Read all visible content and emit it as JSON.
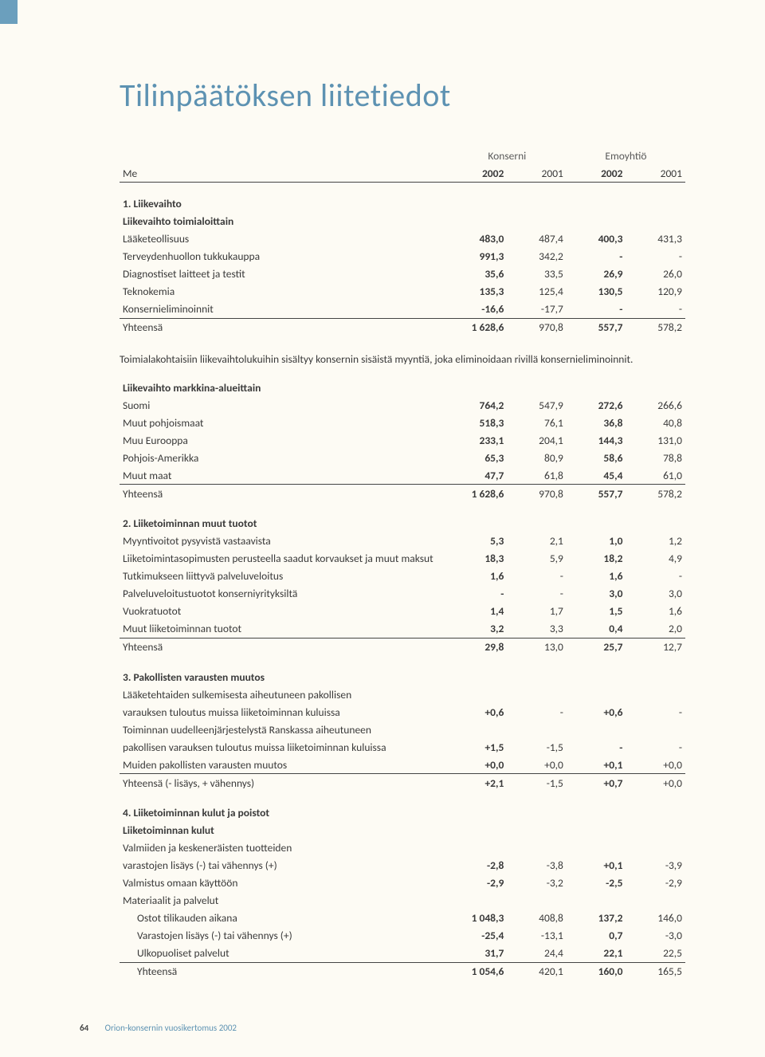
{
  "accent_color": "#6b9fbd",
  "title": "Tilinpäätöksen liitetiedot",
  "page_number": "64",
  "footer_text": "Orion-konsernin vuosikertomus 2002",
  "header": {
    "me": "Me",
    "group_a": "Konserni",
    "group_b": "Emoyhtiö",
    "y2002": "2002",
    "y2001": "2001"
  },
  "sec1": {
    "title": "1. Liikevaihto",
    "sub1": "Liikevaihto toimialoittain",
    "rows": [
      {
        "label": "Lääketeollisuus",
        "a": "483,0",
        "b": "487,4",
        "c": "400,3",
        "d": "431,3"
      },
      {
        "label": "Terveydenhuollon tukkukauppa",
        "a": "991,3",
        "b": "342,2",
        "c": "-",
        "d": "-"
      },
      {
        "label": "Diagnostiset laitteet ja testit",
        "a": "35,6",
        "b": "33,5",
        "c": "26,9",
        "d": "26,0"
      },
      {
        "label": "Teknokemia",
        "a": "135,3",
        "b": "125,4",
        "c": "130,5",
        "d": "120,9"
      },
      {
        "label": "Konsernieliminoinnit",
        "a": "-16,6",
        "b": "-17,7",
        "c": "-",
        "d": "-"
      }
    ],
    "total": {
      "label": "Yhteensä",
      "a": "1 628,6",
      "b": "970,8",
      "c": "557,7",
      "d": "578,2"
    },
    "note": "Toimialakohtaisiin liikevaihtolukuihin sisältyy konsernin sisäistä myyntiä, joka eliminoidaan rivillä konsernieliminoinnit.",
    "sub2": "Liikevaihto markkina-alueittain",
    "rows2": [
      {
        "label": "Suomi",
        "a": "764,2",
        "b": "547,9",
        "c": "272,6",
        "d": "266,6"
      },
      {
        "label": "Muut pohjoismaat",
        "a": "518,3",
        "b": "76,1",
        "c": "36,8",
        "d": "40,8"
      },
      {
        "label": "Muu Eurooppa",
        "a": "233,1",
        "b": "204,1",
        "c": "144,3",
        "d": "131,0"
      },
      {
        "label": "Pohjois-Amerikka",
        "a": "65,3",
        "b": "80,9",
        "c": "58,6",
        "d": "78,8"
      },
      {
        "label": "Muut maat",
        "a": "47,7",
        "b": "61,8",
        "c": "45,4",
        "d": "61,0"
      }
    ],
    "total2": {
      "label": "Yhteensä",
      "a": "1 628,6",
      "b": "970,8",
      "c": "557,7",
      "d": "578,2"
    }
  },
  "sec2": {
    "title": "2. Liiketoiminnan muut tuotot",
    "rows": [
      {
        "label": "Myyntivoitot pysyvistä vastaavista",
        "a": "5,3",
        "b": "2,1",
        "c": "1,0",
        "d": "1,2"
      },
      {
        "label": "Liiketoimintasopimusten perusteella saadut korvaukset ja muut maksut",
        "a": "18,3",
        "b": "5,9",
        "c": "18,2",
        "d": "4,9"
      },
      {
        "label": "Tutkimukseen liittyvä palveluveloitus",
        "a": "1,6",
        "b": "-",
        "c": "1,6",
        "d": "-"
      },
      {
        "label": "Palveluveloitustuotot konserniyrityksiltä",
        "a": "-",
        "b": "-",
        "c": "3,0",
        "d": "3,0"
      },
      {
        "label": "Vuokratuotot",
        "a": "1,4",
        "b": "1,7",
        "c": "1,5",
        "d": "1,6"
      },
      {
        "label": "Muut liiketoiminnan tuotot",
        "a": "3,2",
        "b": "3,3",
        "c": "0,4",
        "d": "2,0"
      }
    ],
    "total": {
      "label": "Yhteensä",
      "a": "29,8",
      "b": "13,0",
      "c": "25,7",
      "d": "12,7"
    }
  },
  "sec3": {
    "title": "3. Pakollisten varausten muutos",
    "rows": [
      {
        "label": "Lääketehtaiden sulkemisesta aiheutuneen pakollisen",
        "a": "",
        "b": "",
        "c": "",
        "d": ""
      },
      {
        "label": "varauksen tuloutus muissa liiketoiminnan kuluissa",
        "a": "+0,6",
        "b": "-",
        "c": "+0,6",
        "d": "-"
      },
      {
        "label": "Toiminnan uudelleenjärjestelystä Ranskassa aiheutuneen",
        "a": "",
        "b": "",
        "c": "",
        "d": ""
      },
      {
        "label": "pakollisen varauksen tuloutus muissa liiketoiminnan kuluissa",
        "a": "+1,5",
        "b": "-1,5",
        "c": "-",
        "d": "-"
      },
      {
        "label": "Muiden pakollisten varausten muutos",
        "a": "+0,0",
        "b": "+0,0",
        "c": "+0,1",
        "d": "+0,0"
      }
    ],
    "total": {
      "label": "Yhteensä (- lisäys, + vähennys)",
      "a": "+2,1",
      "b": "-1,5",
      "c": "+0,7",
      "d": "+0,0"
    }
  },
  "sec4": {
    "title": "4. Liiketoiminnan kulut ja poistot",
    "sub1": "Liiketoiminnan kulut",
    "rows": [
      {
        "label": "Valmiiden ja keskeneräisten tuotteiden",
        "a": "",
        "b": "",
        "c": "",
        "d": "",
        "indent": 0
      },
      {
        "label": "varastojen lisäys (-) tai vähennys (+)",
        "a": "-2,8",
        "b": "-3,8",
        "c": "+0,1",
        "d": "-3,9",
        "indent": 0
      },
      {
        "label": "Valmistus omaan käyttöön",
        "a": "-2,9",
        "b": "-3,2",
        "c": "-2,5",
        "d": "-2,9",
        "indent": 0
      },
      {
        "label": "Materiaalit ja palvelut",
        "a": "",
        "b": "",
        "c": "",
        "d": "",
        "indent": 0
      },
      {
        "label": "Ostot tilikauden aikana",
        "a": "1 048,3",
        "b": "408,8",
        "c": "137,2",
        "d": "146,0",
        "indent": 1
      },
      {
        "label": "Varastojen lisäys (-) tai vähennys (+)",
        "a": "-25,4",
        "b": "-13,1",
        "c": "0,7",
        "d": "-3,0",
        "indent": 1
      },
      {
        "label": "Ulkopuoliset palvelut",
        "a": "31,7",
        "b": "24,4",
        "c": "22,1",
        "d": "22,5",
        "indent": 1
      }
    ],
    "total": {
      "label": "Yhteensä",
      "a": "1 054,6",
      "b": "420,1",
      "c": "160,0",
      "d": "165,5",
      "indent": 1
    }
  }
}
